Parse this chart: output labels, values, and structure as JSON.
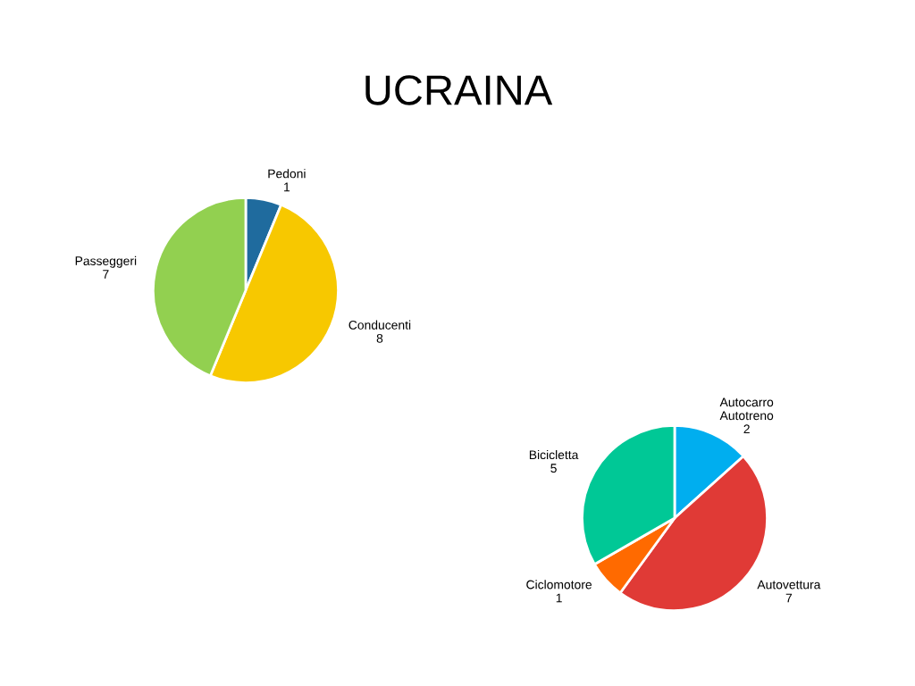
{
  "chart_data": [
    {
      "type": "pie",
      "title": "UCRAINA",
      "categories": [
        "Pedoni",
        "Conducenti",
        "Passeggeri"
      ],
      "values": [
        1,
        8,
        7
      ],
      "colors": [
        "#1f6b9e",
        "#f7c800",
        "#92d050"
      ],
      "data_labels": true,
      "legend": false
    },
    {
      "type": "pie",
      "categories": [
        "Autocarro\nAutotreno",
        "Autovettura",
        "Ciclomotore",
        "Bicicletta"
      ],
      "values": [
        2,
        7,
        1,
        5
      ],
      "colors": [
        "#00aeef",
        "#e03a36",
        "#ff6a00",
        "#00c896"
      ],
      "data_labels": true,
      "legend": false
    }
  ]
}
